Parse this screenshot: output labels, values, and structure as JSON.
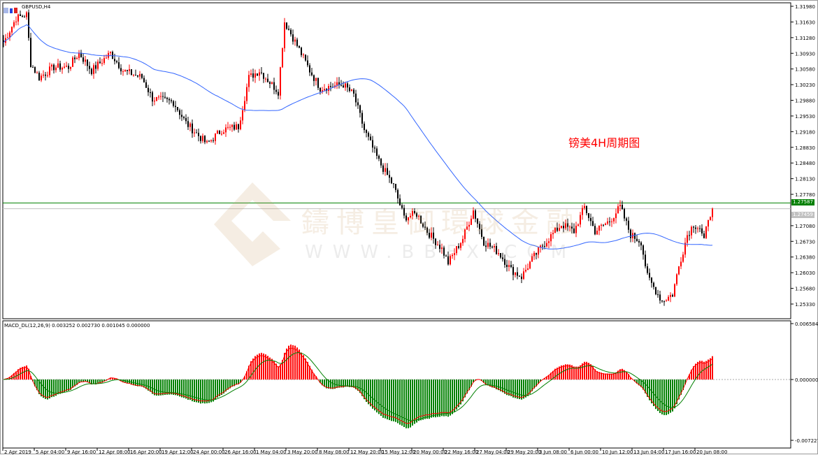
{
  "window": {
    "symbol": "GBPUSD,H4"
  },
  "annotation": "镑美4H周期图",
  "watermark": {
    "text": "鑄博皇御環球金融",
    "url": "WWW.BBFX.COM"
  },
  "price_axis": {
    "ticks": [
      "1.31980",
      "1.31630",
      "1.31280",
      "1.30930",
      "1.30580",
      "1.30230",
      "1.29880",
      "1.29530",
      "1.29180",
      "1.28830",
      "1.28480",
      "1.28130",
      "1.27780",
      "1.27080",
      "1.26730",
      "1.26380",
      "1.26030",
      "1.25680",
      "1.25330"
    ],
    "level_line": "1.27587",
    "bid_line": "1.27459",
    "level_color": "#008000"
  },
  "macd": {
    "label": "MACD_DL(12,26,9) 0.003252 0.002730 0.001045 0.000000",
    "ticks": [
      "0.006584",
      "0.000000",
      "-0.007227"
    ]
  },
  "time_axis": [
    "2 Apr 2019",
    "5 Apr 04:00",
    "9 Apr 16:00",
    "12 Apr 08:00",
    "16 Apr 20:00",
    "19 Apr 12:00",
    "24 Apr 00:00",
    "26 Apr 16:00",
    "1 May 04:00",
    "3 May 20:00",
    "8 May 08:00",
    "12 May 20:00",
    "15 May 12:00",
    "20 May 00:00",
    "22 May 16:00",
    "27 May 04:00",
    "29 May 20:00",
    "3 Jun 08:00",
    "6 Jun 00:00",
    "10 Jun 12:00",
    "13 Jun 04:00",
    "17 Jun 16:00",
    "20 Jun 08:00"
  ],
  "chart_data": {
    "type": "candlestick",
    "timeframe": "H4",
    "ylim": [
      1.2508,
      1.3205
    ],
    "up_color": "#ff0000",
    "down_color": "#000000",
    "ma_color": "#3366ff",
    "close_path": [
      [
        0,
        1.31168
      ],
      [
        6,
        1.31715
      ],
      [
        11,
        1.31793
      ],
      [
        13,
        1.307
      ],
      [
        17,
        1.30388
      ],
      [
        24,
        1.30622
      ],
      [
        31,
        1.30622
      ],
      [
        36,
        1.30934
      ],
      [
        42,
        1.30544
      ],
      [
        51,
        1.30934
      ],
      [
        57,
        1.30544
      ],
      [
        66,
        1.30388
      ],
      [
        71,
        1.2992
      ],
      [
        81,
        1.29841
      ],
      [
        87,
        1.29373
      ],
      [
        97,
        1.28905
      ],
      [
        104,
        1.29217
      ],
      [
        112,
        1.29295
      ],
      [
        117,
        1.30388
      ],
      [
        122,
        1.30544
      ],
      [
        131,
        1.30076
      ],
      [
        134,
        1.31637
      ],
      [
        141,
        1.31012
      ],
      [
        146,
        1.30544
      ],
      [
        151,
        1.30154
      ],
      [
        162,
        1.30232
      ],
      [
        167,
        1.29998
      ],
      [
        172,
        1.29217
      ],
      [
        179,
        1.28515
      ],
      [
        186,
        1.27968
      ],
      [
        191,
        1.27266
      ],
      [
        197,
        1.27344
      ],
      [
        202,
        1.26954
      ],
      [
        209,
        1.26563
      ],
      [
        212,
        1.26251
      ],
      [
        219,
        1.26798
      ],
      [
        224,
        1.27422
      ],
      [
        229,
        1.2672
      ],
      [
        236,
        1.26485
      ],
      [
        242,
        1.26095
      ],
      [
        247,
        1.25939
      ],
      [
        252,
        1.26329
      ],
      [
        257,
        1.26641
      ],
      [
        266,
        1.2711
      ],
      [
        272,
        1.26954
      ],
      [
        277,
        1.275
      ],
      [
        282,
        1.26954
      ],
      [
        289,
        1.27188
      ],
      [
        294,
        1.275
      ],
      [
        299,
        1.26876
      ],
      [
        304,
        1.2672
      ],
      [
        307,
        1.25939
      ],
      [
        314,
        1.25393
      ],
      [
        319,
        1.25549
      ],
      [
        322,
        1.26173
      ],
      [
        326,
        1.26876
      ],
      [
        329,
        1.2711
      ],
      [
        332,
        1.27032
      ],
      [
        334,
        1.2672
      ],
      [
        336,
        1.27266
      ],
      [
        338,
        1.27459
      ]
    ]
  }
}
